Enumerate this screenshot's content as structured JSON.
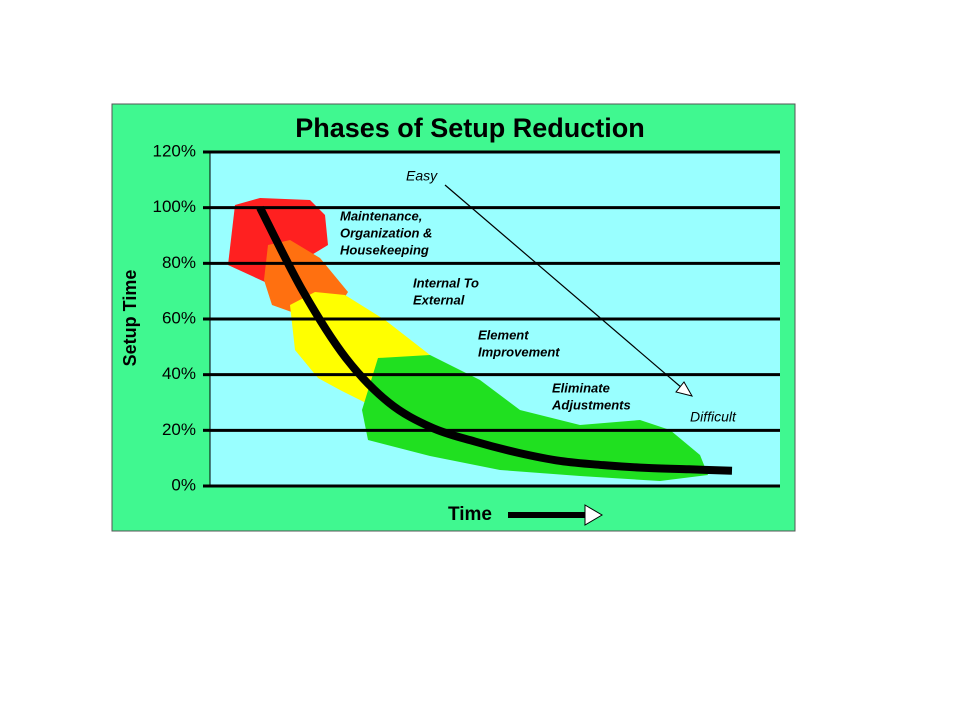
{
  "chart_data": {
    "type": "line",
    "title": "Phases of Setup Reduction",
    "y_label": "Setup Time",
    "x_label": "Time",
    "categories": [
      null,
      null,
      null,
      null,
      null,
      null,
      null,
      null,
      null,
      null,
      null,
      null
    ],
    "series": [
      {
        "color": "#000000",
        "values": [
          100,
          70,
          46,
          30,
          21,
          16,
          12,
          9,
          7.5,
          6.5,
          6,
          5.5
        ]
      }
    ],
    "ylim": [
      0,
      120
    ],
    "yticks": [
      {
        "value": 0,
        "label": "0%"
      },
      {
        "value": 20,
        "label": "20%"
      },
      {
        "value": 40,
        "label": "40%"
      },
      {
        "value": 60,
        "label": "60%"
      },
      {
        "value": 80,
        "label": "80%"
      },
      {
        "value": 100,
        "label": "100%"
      },
      {
        "value": 120,
        "label": "120%"
      }
    ],
    "grid": true,
    "phases": [
      {
        "lines": [
          "Maintenance,",
          "Organization &",
          "Housekeeping"
        ],
        "color": "#ff2020"
      },
      {
        "lines": [
          "Internal To",
          "External"
        ],
        "color": "#ff7010"
      },
      {
        "lines": [
          "Element",
          "Improvement"
        ],
        "color": "#ffff00"
      },
      {
        "lines": [
          "Eliminate",
          "Adjustments"
        ],
        "color": "#20e020"
      }
    ],
    "annotations": [
      "Easy",
      "Difficult"
    ]
  }
}
